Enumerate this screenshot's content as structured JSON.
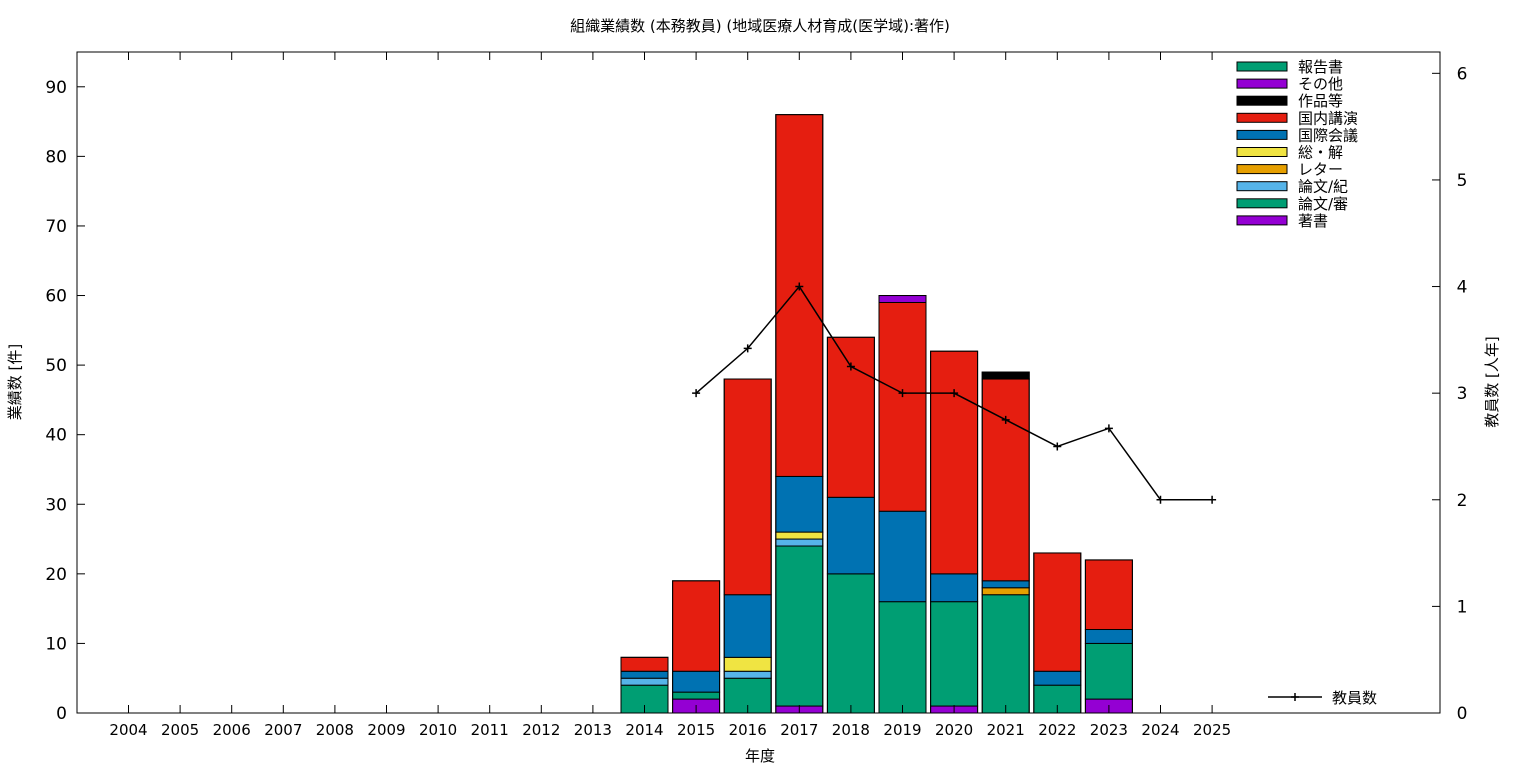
{
  "chart_data": {
    "type": "bar",
    "title": "組織業績数 (本務教員) (地域医療人材育成(医学域):著作)",
    "xlabel": "年度",
    "ylabel": "業績数 [件]",
    "y2label": "教員数 [人年]",
    "categories": [
      "2004",
      "2005",
      "2006",
      "2007",
      "2008",
      "2009",
      "2010",
      "2011",
      "2012",
      "2013",
      "2014",
      "2015",
      "2016",
      "2017",
      "2018",
      "2019",
      "2020",
      "2021",
      "2022",
      "2023",
      "2024",
      "2025"
    ],
    "ylim": [
      0,
      95
    ],
    "yticks": [
      0,
      10,
      20,
      30,
      40,
      50,
      60,
      70,
      80,
      90
    ],
    "y2lim": [
      0,
      6.2
    ],
    "y2ticks": [
      0,
      1,
      2,
      3,
      4,
      5,
      6
    ],
    "stack_order": [
      "著書",
      "論文/審",
      "論文/紀",
      "レター",
      "総・解",
      "国際会議",
      "国内講演",
      "作品等",
      "その他",
      "報告書"
    ],
    "legend_order": [
      "報告書",
      "その他",
      "作品等",
      "国内講演",
      "国際会議",
      "総・解",
      "レター",
      "論文/紀",
      "論文/審",
      "著書"
    ],
    "legend_position": "top-right",
    "series": [
      {
        "name": "著書",
        "color": "#9400d3",
        "values": [
          0,
          0,
          0,
          0,
          0,
          0,
          0,
          0,
          0,
          0,
          0,
          2,
          0,
          1,
          0,
          0,
          1,
          0,
          0,
          2,
          0,
          0
        ]
      },
      {
        "name": "論文/審",
        "color": "#009e73",
        "values": [
          0,
          0,
          0,
          0,
          0,
          0,
          0,
          0,
          0,
          0,
          4,
          1,
          5,
          23,
          20,
          16,
          15,
          17,
          4,
          8,
          0,
          0
        ]
      },
      {
        "name": "論文/紀",
        "color": "#56b4e9",
        "values": [
          0,
          0,
          0,
          0,
          0,
          0,
          0,
          0,
          0,
          0,
          1,
          0,
          1,
          1,
          0,
          0,
          0,
          0,
          0,
          0,
          0,
          0
        ]
      },
      {
        "name": "レター",
        "color": "#e69f00",
        "values": [
          0,
          0,
          0,
          0,
          0,
          0,
          0,
          0,
          0,
          0,
          0,
          0,
          0,
          0,
          0,
          0,
          0,
          1,
          0,
          0,
          0,
          0
        ]
      },
      {
        "name": "総・解",
        "color": "#f0e442",
        "values": [
          0,
          0,
          0,
          0,
          0,
          0,
          0,
          0,
          0,
          0,
          0,
          0,
          2,
          1,
          0,
          0,
          0,
          0,
          0,
          0,
          0,
          0
        ]
      },
      {
        "name": "国際会議",
        "color": "#0072b2",
        "values": [
          0,
          0,
          0,
          0,
          0,
          0,
          0,
          0,
          0,
          0,
          1,
          3,
          9,
          8,
          11,
          13,
          4,
          1,
          2,
          2,
          0,
          0
        ]
      },
      {
        "name": "国内講演",
        "color": "#e51e10",
        "values": [
          0,
          0,
          0,
          0,
          0,
          0,
          0,
          0,
          0,
          0,
          2,
          13,
          31,
          52,
          23,
          30,
          32,
          29,
          17,
          10,
          0,
          0
        ]
      },
      {
        "name": "作品等",
        "color": "#000000",
        "values": [
          0,
          0,
          0,
          0,
          0,
          0,
          0,
          0,
          0,
          0,
          0,
          0,
          0,
          0,
          0,
          0,
          0,
          1,
          0,
          0,
          0,
          0
        ]
      },
      {
        "name": "その他",
        "color": "#9400d3",
        "values": [
          0,
          0,
          0,
          0,
          0,
          0,
          0,
          0,
          0,
          0,
          0,
          0,
          0,
          0,
          0,
          1,
          0,
          0,
          0,
          0,
          0,
          0
        ]
      },
      {
        "name": "報告書",
        "color": "#009e73",
        "values": [
          0,
          0,
          0,
          0,
          0,
          0,
          0,
          0,
          0,
          0,
          0,
          0,
          0,
          0,
          0,
          0,
          0,
          0,
          0,
          0,
          0,
          0
        ]
      }
    ],
    "line_series": {
      "name": "教員数",
      "color": "#000000",
      "axis": "y2",
      "x": [
        "2015",
        "2016",
        "2017",
        "2018",
        "2019",
        "2020",
        "2021",
        "2022",
        "2023",
        "2024",
        "2025"
      ],
      "values": [
        3.0,
        3.42,
        4.0,
        3.25,
        3.0,
        3.0,
        2.75,
        2.5,
        2.67,
        2.0,
        2.0
      ]
    }
  }
}
